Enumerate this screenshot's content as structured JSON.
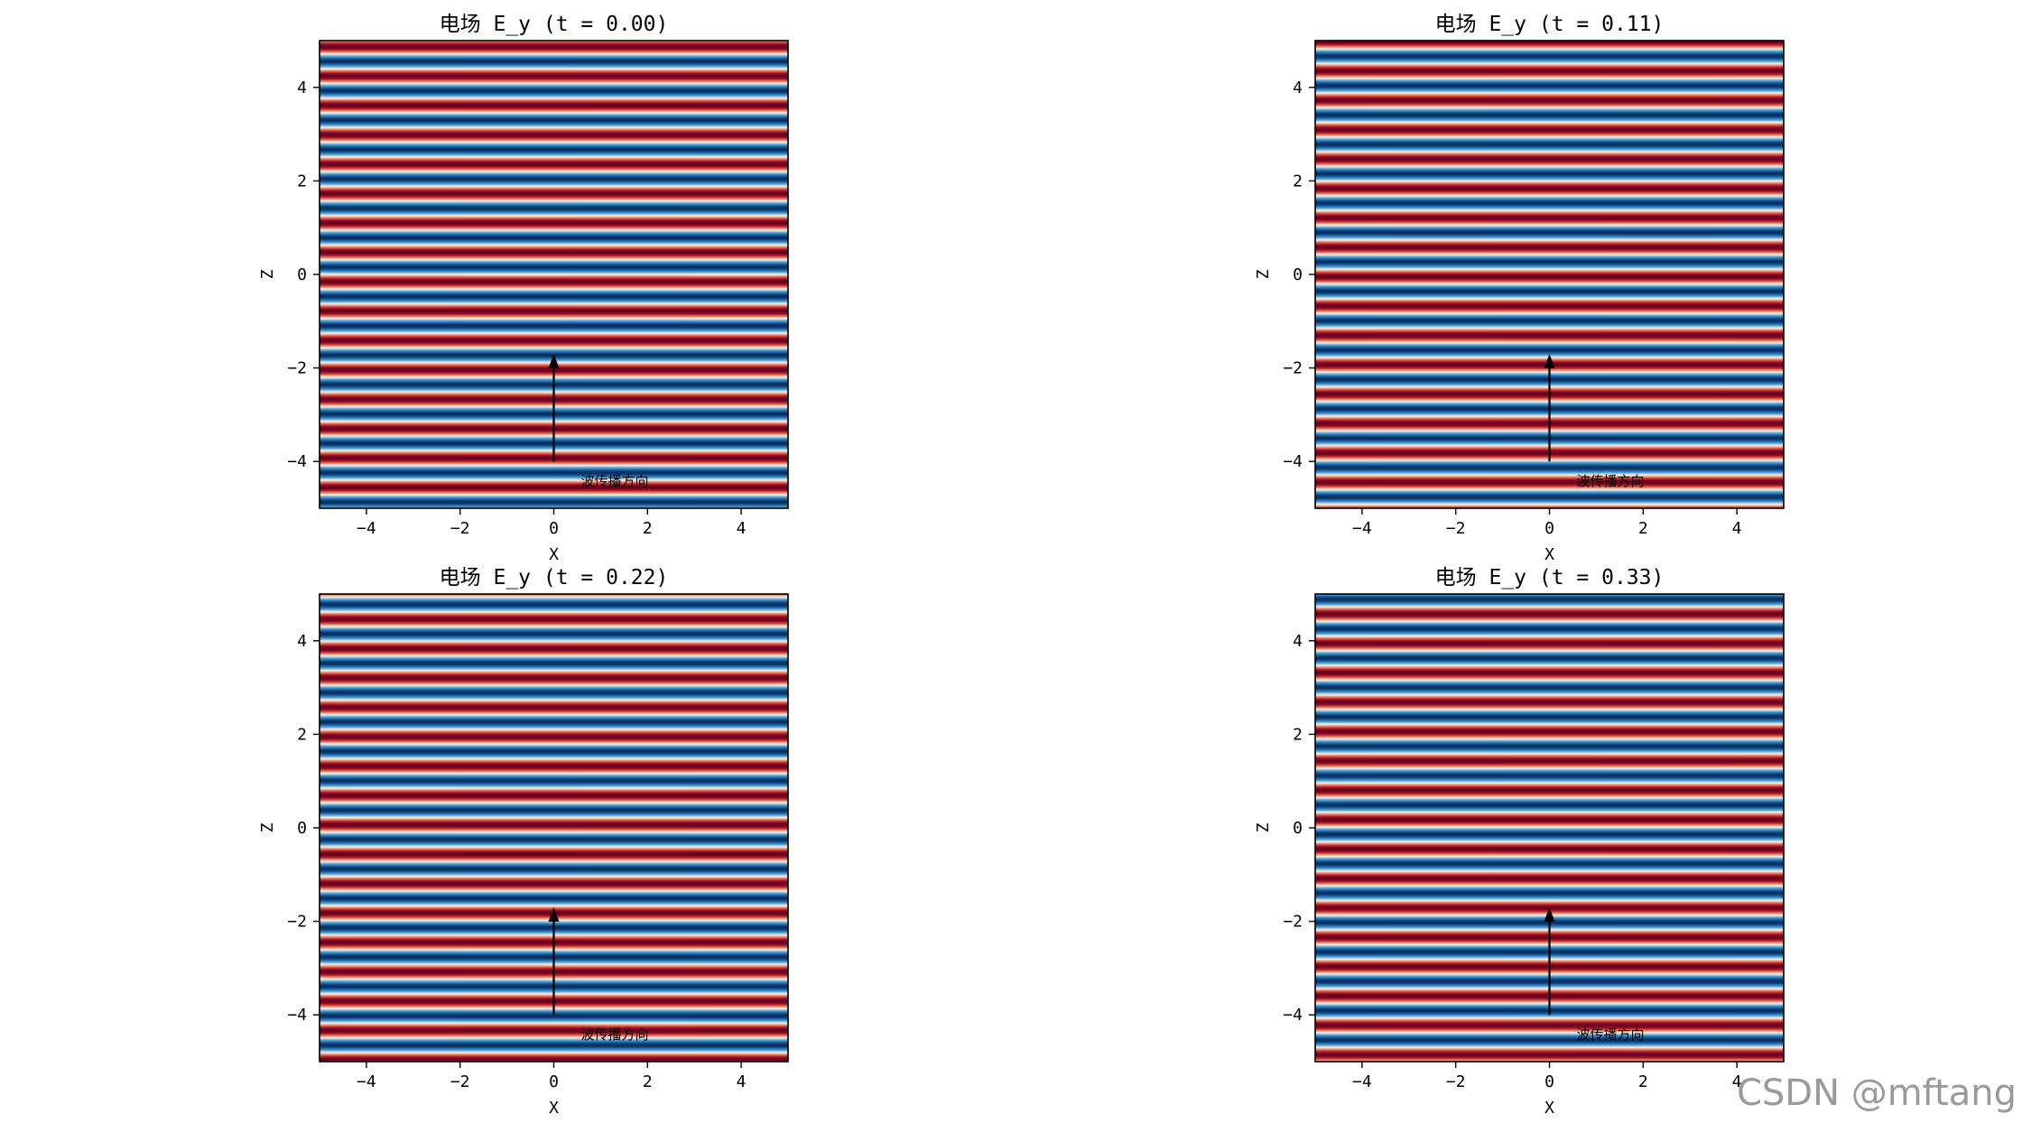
{
  "chart_data": [
    {
      "type": "heatmap",
      "title": "电场 E_y (t = 0.00)",
      "t": 0.0,
      "xlabel": "X",
      "ylabel": "Z",
      "xlim": [
        -5,
        5
      ],
      "ylim": [
        -5,
        5
      ],
      "xticks": [
        -4,
        -2,
        0,
        2,
        4
      ],
      "yticks": [
        -4,
        -2,
        0,
        2,
        4
      ],
      "field": "E_y = sin(k*z - w*t)",
      "k": 10,
      "omega": 10,
      "colormap": "RdBu",
      "arrow": {
        "x": 0,
        "z_start": -4,
        "z_end": -1.7
      },
      "annotation": {
        "text": "波传播方向",
        "x": 0.5,
        "z": -4.4
      }
    },
    {
      "type": "heatmap",
      "title": "电场 E_y (t = 0.11)",
      "t": 0.11,
      "xlabel": "X",
      "ylabel": "Z",
      "xlim": [
        -5,
        5
      ],
      "ylim": [
        -5,
        5
      ],
      "xticks": [
        -4,
        -2,
        0,
        2,
        4
      ],
      "yticks": [
        -4,
        -2,
        0,
        2,
        4
      ],
      "field": "E_y = sin(k*z - w*t)",
      "k": 10,
      "omega": 10,
      "colormap": "RdBu",
      "arrow": {
        "x": 0,
        "z_start": -4,
        "z_end": -1.7
      },
      "annotation": {
        "text": "波传播方向",
        "x": 0.5,
        "z": -4.4
      }
    },
    {
      "type": "heatmap",
      "title": "电场 E_y (t = 0.22)",
      "t": 0.22,
      "xlabel": "X",
      "ylabel": "Z",
      "xlim": [
        -5,
        5
      ],
      "ylim": [
        -5,
        5
      ],
      "xticks": [
        -4,
        -2,
        0,
        2,
        4
      ],
      "yticks": [
        -4,
        -2,
        0,
        2,
        4
      ],
      "field": "E_y = sin(k*z - w*t)",
      "k": 10,
      "omega": 10,
      "colormap": "RdBu",
      "arrow": {
        "x": 0,
        "z_start": -4,
        "z_end": -1.7
      },
      "annotation": {
        "text": "波传播方向",
        "x": 0.5,
        "z": -4.4
      }
    },
    {
      "type": "heatmap",
      "title": "电场 E_y (t = 0.33)",
      "t": 0.33,
      "xlabel": "X",
      "ylabel": "Z",
      "xlim": [
        -5,
        5
      ],
      "ylim": [
        -5,
        5
      ],
      "xticks": [
        -4,
        -2,
        0,
        2,
        4
      ],
      "yticks": [
        -4,
        -2,
        0,
        2,
        4
      ],
      "field": "E_y = sin(k*z - w*t)",
      "k": 10,
      "omega": 10,
      "colormap": "RdBu",
      "arrow": {
        "x": 0,
        "z_start": -4,
        "z_end": -1.7
      },
      "annotation": {
        "text": "波传播方向",
        "x": 0.5,
        "z": -4.4
      }
    }
  ],
  "watermark": "CSDN @mftang"
}
